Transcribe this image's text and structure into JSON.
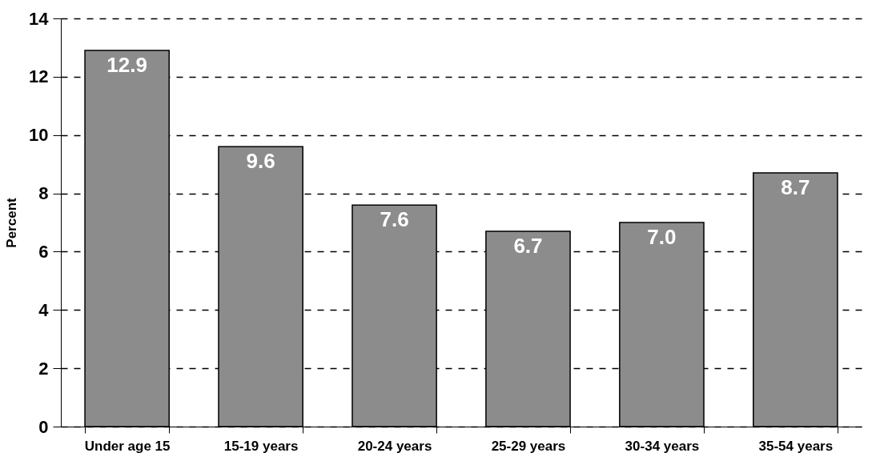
{
  "chart_data": {
    "type": "bar",
    "ylabel": "Percent",
    "categories": [
      "Under age 15",
      "15-19 years",
      "20-24 years",
      "25-29 years",
      "30-34 years",
      "35-54 years"
    ],
    "values": [
      12.9,
      9.6,
      7.6,
      6.7,
      7.0,
      8.7
    ],
    "color": "#8c8c8c",
    "ylim": [
      0,
      14
    ],
    "yticks": [
      0,
      2,
      4,
      6,
      8,
      10,
      12,
      14
    ],
    "value_labels": [
      "12.9",
      "9.6",
      "7.6",
      "6.7",
      "7.0",
      "8.7"
    ],
    "grid": "y"
  }
}
